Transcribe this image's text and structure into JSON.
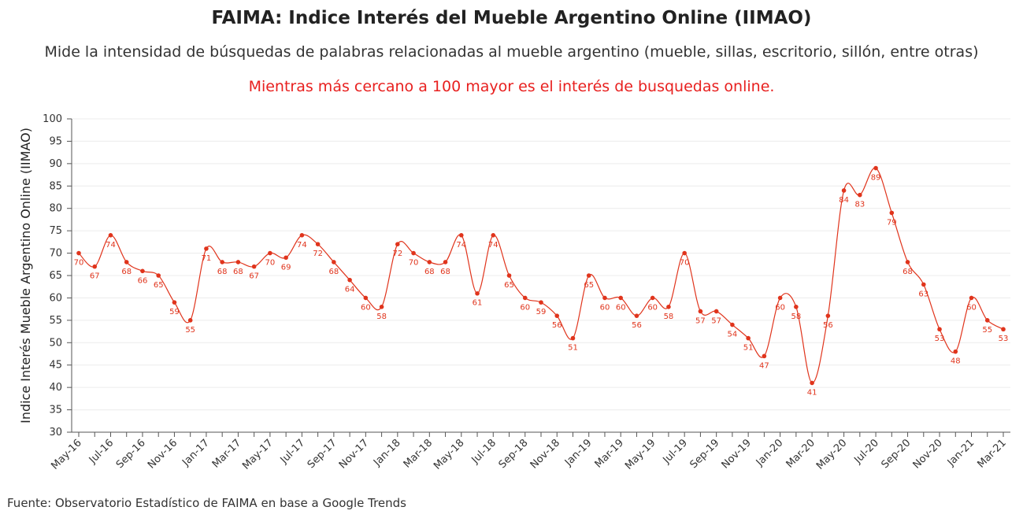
{
  "title": "FAIMA: Indice Interés del Mueble Argentino Online (IIMAO)",
  "subtitle": "Mide la intensidad de búsquedas de palabras relacionadas al mueble argentino (mueble, sillas, escritorio, sillón, entre otras)",
  "note": "Mientras más cercano a 100 mayor es el interés de busquedas online.",
  "source": "Fuente: Observatorio Estadístico de FAIMA en base a Google Trends",
  "colors": {
    "series": "#e0341c",
    "note": "#e8201f"
  },
  "chart_data": {
    "type": "line",
    "title": "FAIMA: Indice Interés del Mueble Argentino Online (IIMAO)",
    "ylabel": "Indice Interés Mueble Argentino Online (IIMAO)",
    "xlabel": "",
    "ylim": [
      30,
      100
    ],
    "yticks": [
      30,
      35,
      40,
      45,
      50,
      55,
      60,
      65,
      70,
      75,
      80,
      85,
      90,
      95,
      100
    ],
    "grid": "horizontal",
    "x": [
      "May-16",
      "Jun-16",
      "Jul-16",
      "Aug-16",
      "Sep-16",
      "Oct-16",
      "Nov-16",
      "Dec-16",
      "Jan-17",
      "Feb-17",
      "Mar-17",
      "Apr-17",
      "May-17",
      "Jun-17",
      "Jul-17",
      "Aug-17",
      "Sep-17",
      "Oct-17",
      "Nov-17",
      "Dec-17",
      "Jan-18",
      "Feb-18",
      "Mar-18",
      "Apr-18",
      "May-18",
      "Jun-18",
      "Jul-18",
      "Aug-18",
      "Sep-18",
      "Oct-18",
      "Nov-18",
      "Dec-18",
      "Jan-19",
      "Feb-19",
      "Mar-19",
      "Apr-19",
      "May-19",
      "Jun-19",
      "Jul-19",
      "Aug-19",
      "Sep-19",
      "Oct-19",
      "Nov-19",
      "Dec-19",
      "Jan-20",
      "Feb-20",
      "Mar-20",
      "Apr-20",
      "May-20",
      "Jun-20",
      "Jul-20",
      "Aug-20",
      "Sep-20",
      "Oct-20",
      "Nov-20",
      "Dec-20",
      "Jan-21",
      "Feb-21",
      "Mar-21"
    ],
    "x_tick_labels": [
      "May-16",
      "Jul-16",
      "Sep-16",
      "Nov-16",
      "Jan-17",
      "Mar-17",
      "May-17",
      "Jul-17",
      "Sep-17",
      "Nov-17",
      "Jan-18",
      "Mar-18",
      "May-18",
      "Jul-18",
      "Sep-18",
      "Nov-18",
      "Jan-19",
      "Mar-19",
      "May-19",
      "Jul-19",
      "Sep-19",
      "Nov-19",
      "Jan-20",
      "Mar-20",
      "May-20",
      "Jul-20",
      "Sep-20",
      "Nov-20",
      "Jan-21",
      "Mar-21"
    ],
    "series": [
      {
        "values": [
          70,
          67,
          74,
          68,
          66,
          65,
          59,
          55,
          71,
          68,
          68,
          67,
          70,
          69,
          74,
          72,
          68,
          64,
          60,
          58,
          72,
          70,
          68,
          68,
          74,
          61,
          74,
          65,
          60,
          59,
          56,
          51,
          65,
          60,
          60,
          56,
          60,
          58,
          70,
          57,
          57,
          54,
          51,
          47,
          60,
          58,
          41,
          56,
          84,
          83,
          89,
          79,
          68,
          63,
          53,
          48,
          60,
          55,
          53
        ]
      }
    ]
  }
}
